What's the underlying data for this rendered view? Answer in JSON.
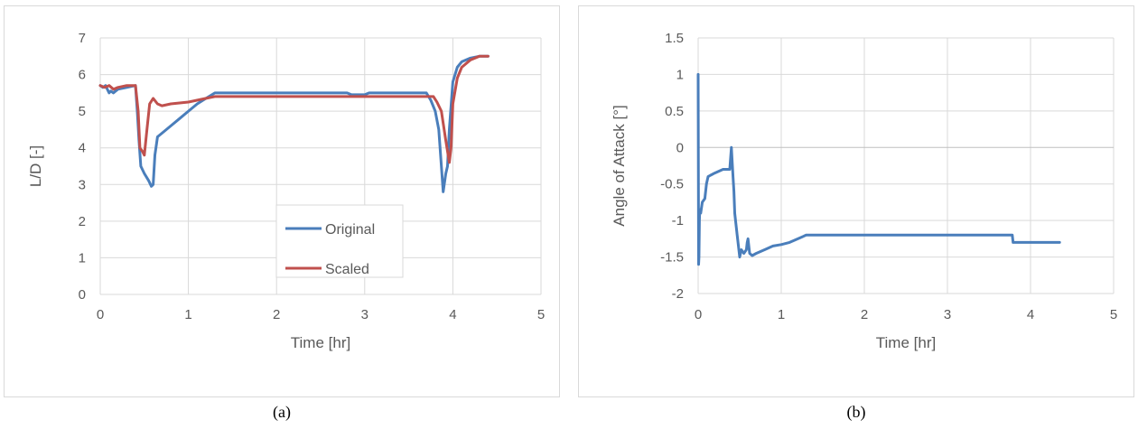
{
  "captions": {
    "a": "(a)",
    "b": "(b)"
  },
  "chart_data": [
    {
      "type": "line",
      "xlabel": "Time [hr]",
      "ylabel": "L/D [-]",
      "xlim": [
        0,
        5
      ],
      "ylim": [
        0,
        7
      ],
      "xticks": [
        "0",
        "1",
        "2",
        "3",
        "4",
        "5"
      ],
      "yticks": [
        "0",
        "1",
        "2",
        "3",
        "4",
        "5",
        "6",
        "7"
      ],
      "grid": "horizontal and vertical",
      "legend": "lower-center",
      "series": [
        {
          "name": "Original",
          "color": "#4a7ebb",
          "x": [
            0,
            0.03,
            0.06,
            0.08,
            0.1,
            0.12,
            0.15,
            0.2,
            0.3,
            0.4,
            0.42,
            0.44,
            0.46,
            0.5,
            0.55,
            0.58,
            0.6,
            0.62,
            0.65,
            0.7,
            0.8,
            0.9,
            1.0,
            1.1,
            1.2,
            1.3,
            2.0,
            2.8,
            2.85,
            3.0,
            3.05,
            3.7,
            3.75,
            3.8,
            3.84,
            3.87,
            3.89,
            3.92,
            3.94,
            3.96,
            4.0,
            4.05,
            4.1,
            4.2,
            4.3,
            4.4
          ],
          "y": [
            5.7,
            5.65,
            5.7,
            5.6,
            5.5,
            5.55,
            5.5,
            5.6,
            5.65,
            5.7,
            5.0,
            4.2,
            3.5,
            3.3,
            3.1,
            2.95,
            3.0,
            3.8,
            4.3,
            4.4,
            4.6,
            4.8,
            5.0,
            5.2,
            5.35,
            5.5,
            5.5,
            5.5,
            5.45,
            5.45,
            5.5,
            5.5,
            5.3,
            5.0,
            4.5,
            3.5,
            2.8,
            3.3,
            3.5,
            4.5,
            5.8,
            6.2,
            6.35,
            6.45,
            6.5,
            6.5
          ]
        },
        {
          "name": "Scaled",
          "color": "#c0504d",
          "x": [
            0,
            0.05,
            0.1,
            0.15,
            0.2,
            0.3,
            0.4,
            0.43,
            0.45,
            0.48,
            0.5,
            0.53,
            0.56,
            0.6,
            0.65,
            0.7,
            0.8,
            1.0,
            1.2,
            1.3,
            2.0,
            3.0,
            3.7,
            3.78,
            3.82,
            3.87,
            3.92,
            3.96,
            3.98,
            4.0,
            4.05,
            4.1,
            4.2,
            4.3,
            4.4
          ],
          "y": [
            5.7,
            5.65,
            5.7,
            5.6,
            5.65,
            5.7,
            5.7,
            5.0,
            4.0,
            3.9,
            3.8,
            4.5,
            5.2,
            5.35,
            5.2,
            5.15,
            5.2,
            5.25,
            5.35,
            5.4,
            5.4,
            5.4,
            5.4,
            5.4,
            5.25,
            5.0,
            4.2,
            3.6,
            4.0,
            5.2,
            5.9,
            6.2,
            6.4,
            6.5,
            6.5
          ]
        }
      ]
    },
    {
      "type": "line",
      "xlabel": "Time [hr]",
      "ylabel": "Angle of Attack [°]",
      "xlim": [
        0,
        5
      ],
      "ylim": [
        -2,
        1.5
      ],
      "xticks": [
        "0",
        "1",
        "2",
        "3",
        "4",
        "5"
      ],
      "yticks": [
        "-2",
        "-1.5",
        "-1",
        "-0.5",
        "0",
        "0.5",
        "1",
        "1.5"
      ],
      "grid": "horizontal and vertical",
      "legend": "none",
      "series": [
        {
          "color": "#4a7ebb",
          "x": [
            0,
            0.005,
            0.01,
            0.015,
            0.02,
            0.03,
            0.05,
            0.08,
            0.1,
            0.12,
            0.15,
            0.2,
            0.3,
            0.38,
            0.4,
            0.41,
            0.42,
            0.43,
            0.44,
            0.47,
            0.5,
            0.52,
            0.55,
            0.58,
            0.59,
            0.6,
            0.62,
            0.65,
            0.7,
            0.8,
            0.9,
            1.0,
            1.1,
            1.2,
            1.3,
            3.75,
            3.78,
            3.79,
            4.35
          ],
          "y": [
            1.0,
            -1.6,
            -1.5,
            -1.0,
            -0.85,
            -0.9,
            -0.75,
            -0.7,
            -0.5,
            -0.4,
            -0.38,
            -0.35,
            -0.3,
            -0.3,
            0.0,
            -0.2,
            -0.4,
            -0.6,
            -0.9,
            -1.2,
            -1.5,
            -1.4,
            -1.45,
            -1.4,
            -1.3,
            -1.25,
            -1.45,
            -1.48,
            -1.45,
            -1.4,
            -1.35,
            -1.33,
            -1.3,
            -1.25,
            -1.2,
            -1.2,
            -1.2,
            -1.3,
            -1.3
          ]
        }
      ]
    }
  ]
}
